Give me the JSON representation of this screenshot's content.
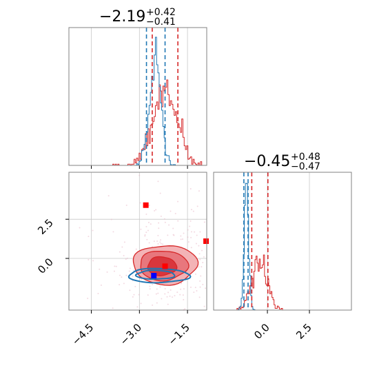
{
  "chart_data": {
    "type": "corner",
    "colors": {
      "blue": "#1f77b4",
      "red": "#d62728",
      "grid": "#c8c8c8",
      "frame": "#808080"
    },
    "grid": true,
    "parameters": [
      {
        "title_main": "−2.19",
        "title_sup": "+0.42",
        "title_sub": "−0.41",
        "xlim": [
          -5.2,
          -0.9
        ]
      },
      {
        "title_main": "−0.45",
        "title_sup": "+0.48",
        "title_sub": "−0.47",
        "xlim": [
          -3.2,
          5.0
        ]
      }
    ],
    "joint": {
      "xlim": [
        -5.2,
        -0.9
      ],
      "ylim": [
        -3.3,
        5.5
      ],
      "x_ticks": [
        {
          "value": -4.5,
          "label": "−4.5"
        },
        {
          "value": -3.0,
          "label": "−3.0"
        },
        {
          "value": -1.5,
          "label": "−1.5"
        }
      ],
      "y_ticks": [
        {
          "value": 0.0,
          "label": "0.0"
        },
        {
          "value": 2.5,
          "label": "2.5"
        }
      ],
      "markers": [
        {
          "x": -2.8,
          "y": 3.4,
          "color": "#ff0000"
        },
        {
          "x": -2.2,
          "y": -0.5,
          "color": "#ff0000"
        },
        {
          "x": -2.55,
          "y": -1.1,
          "color": "#0000ff"
        },
        {
          "x": -0.92,
          "y": 1.1,
          "color": "#ff0000"
        }
      ],
      "contours": {
        "red": [
          {
            "cx": -2.2,
            "cy": -0.4,
            "rx": 1.0,
            "ry": 1.25
          },
          {
            "cx": -2.25,
            "cy": -0.45,
            "rx": 0.75,
            "ry": 0.95
          },
          {
            "cx": -2.3,
            "cy": -0.5,
            "rx": 0.45,
            "ry": 0.6
          }
        ],
        "blue": [
          {
            "cx": -2.4,
            "cy": -1.1,
            "rx": 0.95,
            "ry": 0.45
          },
          {
            "cx": -2.5,
            "cy": -1.05,
            "rx": 0.6,
            "ry": 0.28
          }
        ]
      }
    },
    "marginal_x": {
      "lines_blue": [
        -2.78,
        -2.2
      ],
      "lines_red": [
        -2.6,
        -1.8
      ],
      "dist_blue": {
        "mean": -2.5,
        "sd": 0.18
      },
      "dist_red": {
        "mean": -2.2,
        "sd": 0.38
      }
    },
    "marginal_y": {
      "x_ticks": [
        {
          "value": 0.0,
          "label": "0.0"
        },
        {
          "value": 2.5,
          "label": "2.5"
        }
      ],
      "lines_blue": [
        -1.4,
        -1.15
      ],
      "lines_red": [
        -0.93,
        0.03
      ],
      "dist_blue": {
        "mean": -1.25,
        "sd": 0.13
      },
      "dist_red": {
        "mean": -0.45,
        "sd": 0.45
      }
    }
  }
}
